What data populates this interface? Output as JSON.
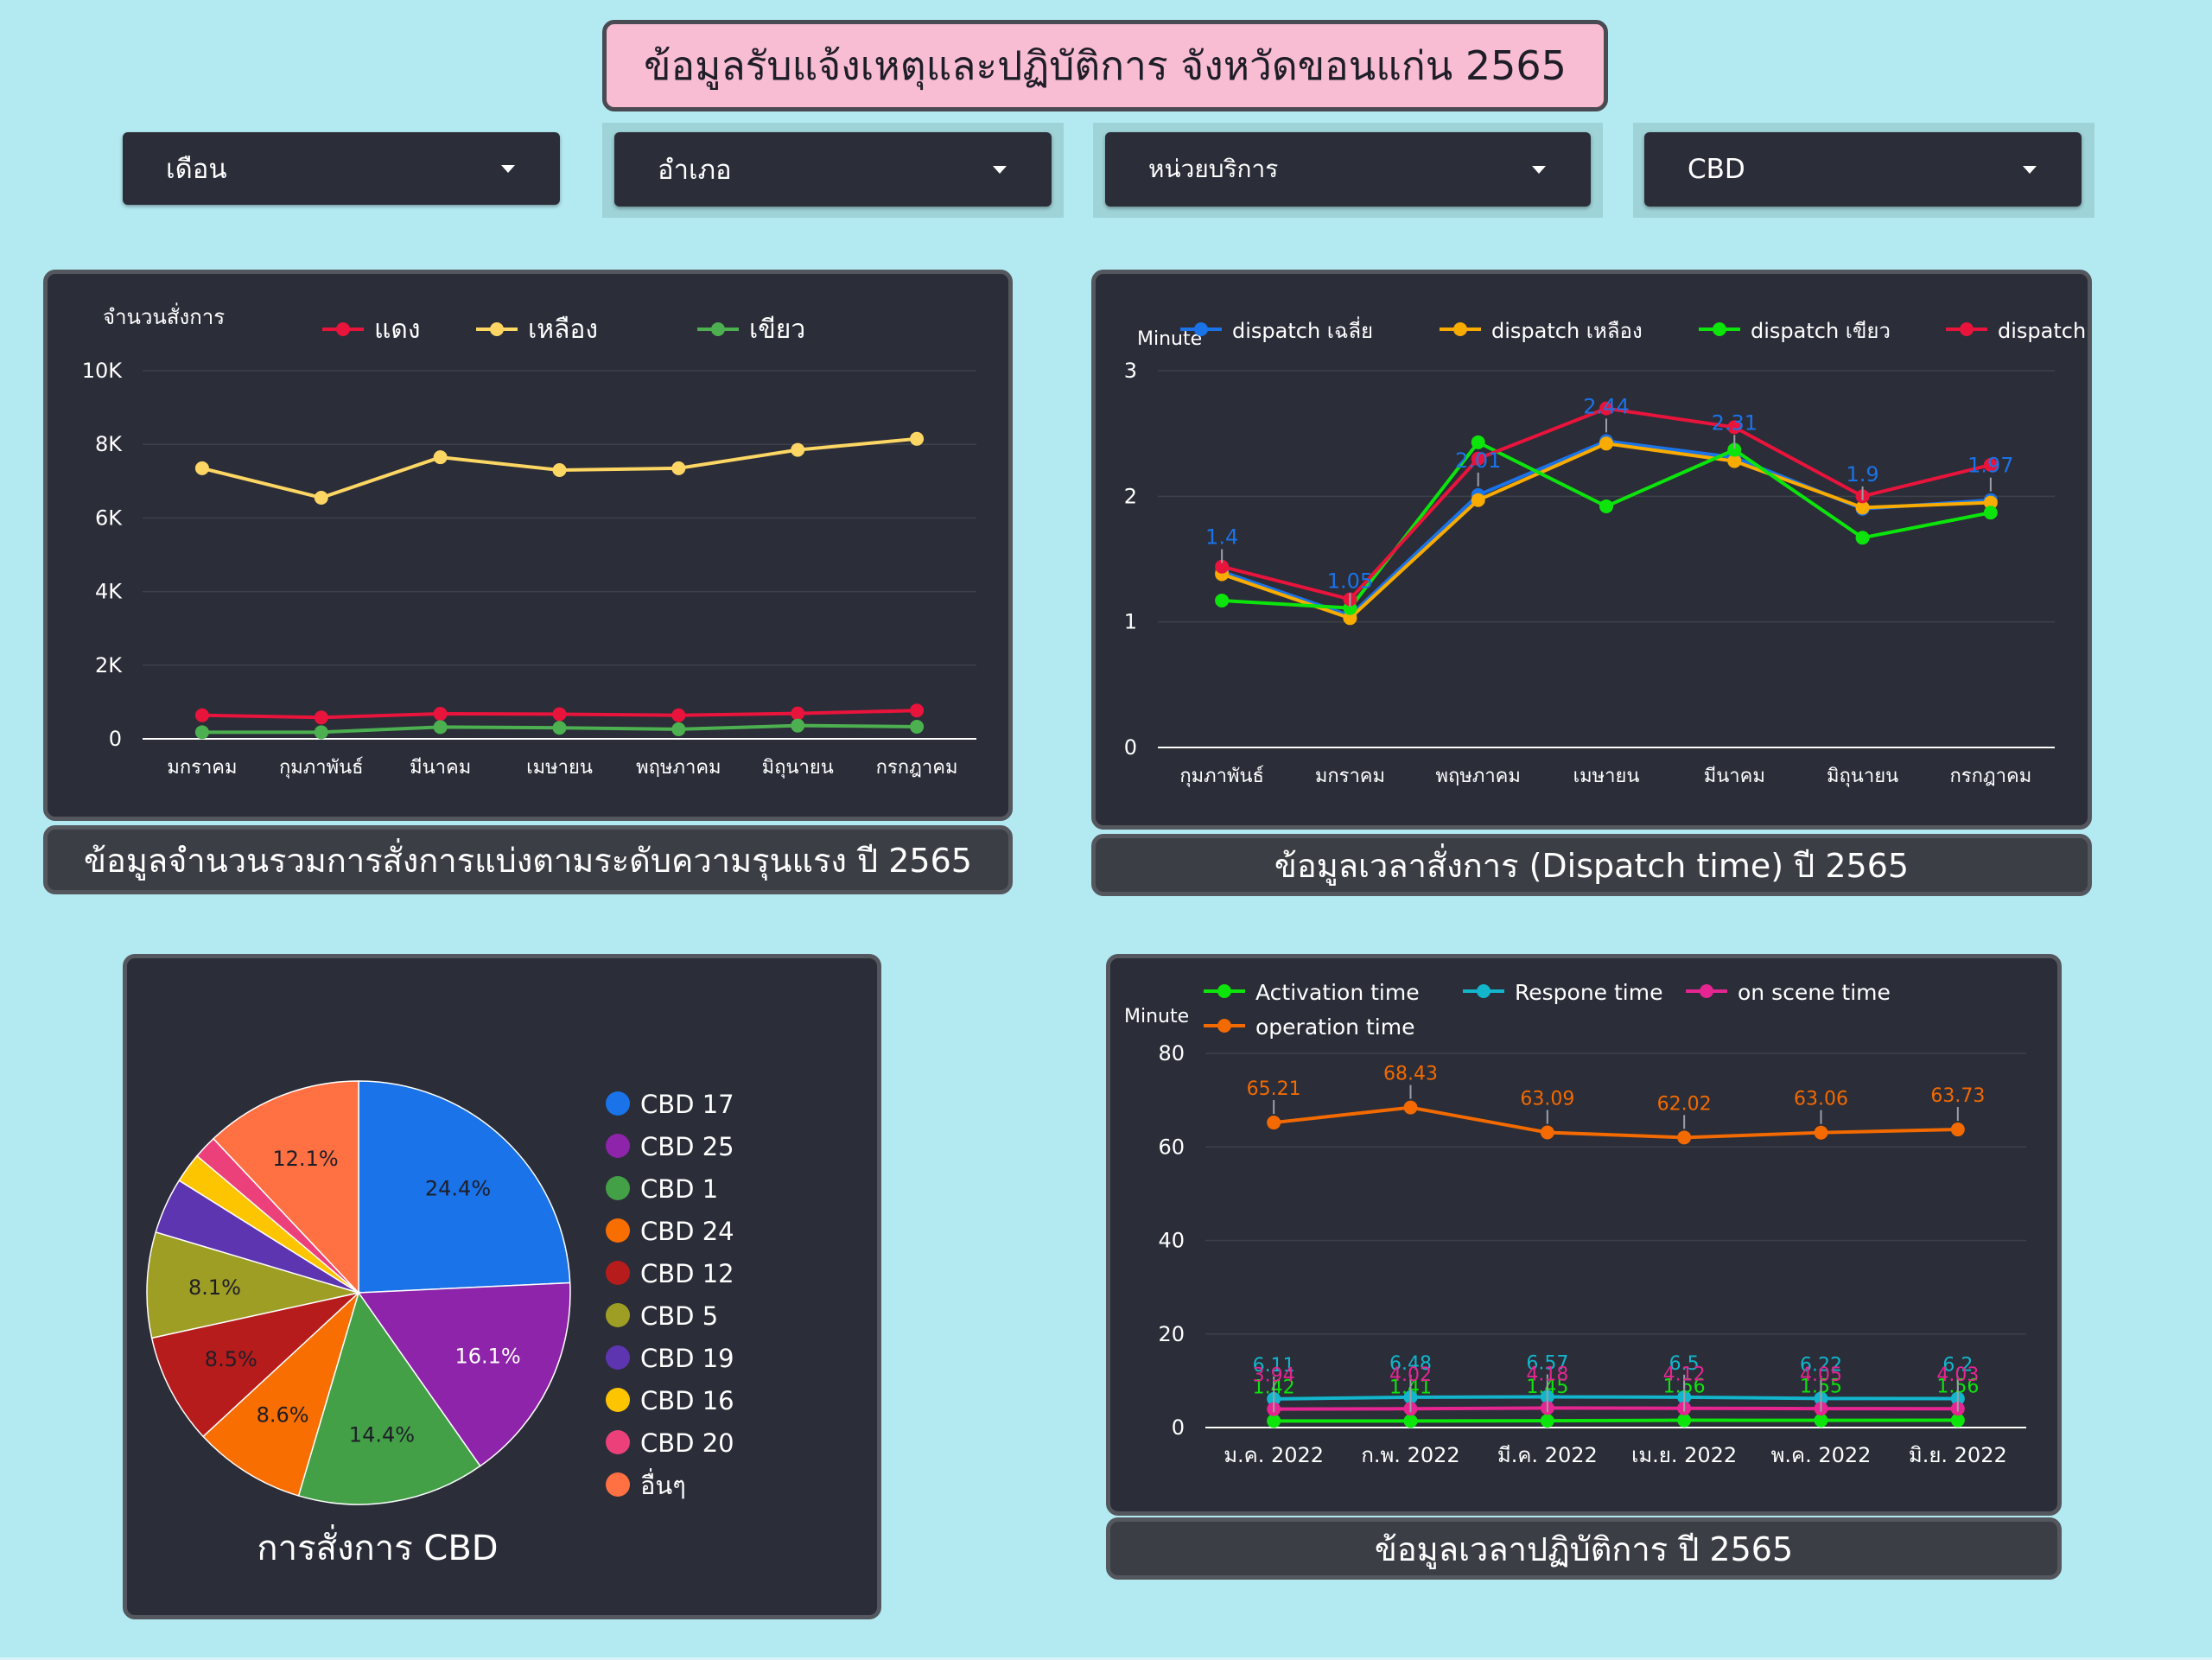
{
  "page": {
    "title": "ข้อมูลรับแจ้งเหตุและปฏิบัติการ จังหวัดขอนแก่น 2565",
    "background": "#b3eaf2"
  },
  "filters": [
    {
      "label": "เดือน",
      "icon": "caret-down-icon"
    },
    {
      "label": "อำเภอ",
      "icon": "caret-down-icon"
    },
    {
      "label": "หน่วยบริการ",
      "icon": "caret-down-icon"
    },
    {
      "label": "CBD",
      "icon": "caret-down-icon"
    }
  ],
  "captions": {
    "severity": "ข้อมูลจำนวนรวมการสั่งการแบ่งตามระดับความรุนแรง ปี 2565",
    "dispatch": "ข้อมูลเวลาสั่งการ (Dispatch time) ปี 2565",
    "cbd": "การสั่งการ CBD",
    "operation": "ข้อมูลเวลาปฏิบัติการ ปี 2565"
  },
  "chart_data": [
    {
      "type": "line",
      "ylabel": "จำนวนสั่งการ",
      "ylim": [
        0,
        10000
      ],
      "yticks": [
        "0",
        "2K",
        "4K",
        "6K",
        "8K",
        "10K"
      ],
      "categories": [
        "มกราคม",
        "กุมภาพันธ์",
        "มีนาคม",
        "เมษายน",
        "พฤษภาคม",
        "มิถุนายน",
        "กรกฎาคม"
      ],
      "legend_position": "top",
      "grid": true,
      "series": [
        {
          "name": "แดง",
          "color": "#e8143c",
          "values": [
            640,
            580,
            680,
            670,
            640,
            690,
            770
          ]
        },
        {
          "name": "เหลือง",
          "color": "#fdd663",
          "values": [
            7350,
            6550,
            7650,
            7300,
            7350,
            7850,
            8150
          ]
        },
        {
          "name": "เขียว",
          "color": "#4cb050",
          "values": [
            180,
            180,
            320,
            300,
            260,
            360,
            330
          ]
        }
      ]
    },
    {
      "type": "line",
      "ylabel": "Minute",
      "ylim": [
        0,
        3
      ],
      "yticks": [
        "0",
        "1",
        "2",
        "3"
      ],
      "categories": [
        "กุมภาพันธ์",
        "มกราคม",
        "พฤษภาคม",
        "เมษายน",
        "มีนาคม",
        "มิถุนายน",
        "กรกฎาคม"
      ],
      "legend_position": "top",
      "grid": true,
      "series": [
        {
          "name": "dispatch เฉลี่ย",
          "color": "#1a73e8",
          "values": [
            1.4,
            1.05,
            2.01,
            2.44,
            2.31,
            1.9,
            1.97
          ],
          "labels": [
            "1.4",
            "1.05",
            "2.01",
            "2.44",
            "2.31",
            "1.9",
            "1.97"
          ]
        },
        {
          "name": "dispatch เหลือง",
          "color": "#f9ab00",
          "values": [
            1.38,
            1.03,
            1.97,
            2.42,
            2.28,
            1.91,
            1.95
          ]
        },
        {
          "name": "dispatch เขียว",
          "color": "#0ce40c",
          "values": [
            1.17,
            1.11,
            2.43,
            1.92,
            2.37,
            1.67,
            1.87
          ]
        },
        {
          "name": "dispatch แดง",
          "color": "#e8143c",
          "values": [
            1.44,
            1.18,
            2.3,
            2.7,
            2.55,
            2.0,
            2.25
          ]
        }
      ]
    },
    {
      "type": "pie",
      "title": "การสั่งการ CBD",
      "slices": [
        {
          "label": "CBD 17",
          "value": 24.4,
          "color": "#1a73e8",
          "show": "24.4%"
        },
        {
          "label": "CBD 25",
          "value": 16.1,
          "color": "#8e24aa",
          "show": "16.1%"
        },
        {
          "label": "CBD 1",
          "value": 14.4,
          "color": "#43a047",
          "show": "14.4%"
        },
        {
          "label": "CBD 24",
          "value": 8.6,
          "color": "#f96e00",
          "show": "8.6%"
        },
        {
          "label": "CBD 12",
          "value": 8.5,
          "color": "#b71c1c",
          "show": "8.5%"
        },
        {
          "label": "CBD 5",
          "value": 8.1,
          "color": "#9e9d24",
          "show": "8.1%"
        },
        {
          "label": "CBD 19",
          "value": 4.3,
          "color": "#5e35b1",
          "show": ""
        },
        {
          "label": "CBD 16",
          "value": 2.3,
          "color": "#fdc400",
          "show": ""
        },
        {
          "label": "CBD 20",
          "value": 1.8,
          "color": "#ec407a",
          "show": ""
        },
        {
          "label": "อื่นๆ",
          "value": 12.1,
          "color": "#ff7043",
          "show": "12.1%"
        }
      ]
    },
    {
      "type": "line",
      "ylabel": "Minute",
      "ylim": [
        0,
        80
      ],
      "yticks": [
        "0",
        "20",
        "40",
        "60",
        "80"
      ],
      "categories": [
        "ม.ค. 2022",
        "ก.พ. 2022",
        "มี.ค. 2022",
        "เม.ย. 2022",
        "พ.ค. 2022",
        "มิ.ย. 2022"
      ],
      "legend_position": "top",
      "grid": true,
      "series": [
        {
          "name": "Activation time",
          "color": "#0ce40c",
          "values": [
            1.42,
            1.41,
            1.45,
            1.56,
            1.55,
            1.56
          ],
          "labels": [
            "1.42",
            "1.41",
            "1.45",
            "1.56",
            "1.55",
            "1.56"
          ]
        },
        {
          "name": "Respone time",
          "color": "#12b5cb",
          "values": [
            6.11,
            6.48,
            6.57,
            6.5,
            6.22,
            6.2
          ],
          "labels": [
            "6.11",
            "6.48",
            "6.57",
            "6.5",
            "6.22",
            "6.2"
          ]
        },
        {
          "name": "on scene time",
          "color": "#e52592",
          "values": [
            3.94,
            4.02,
            4.18,
            4.12,
            4.05,
            4.03
          ],
          "labels": [
            "3.94",
            "4.02",
            "4.18",
            "4.12",
            "4.05",
            "4.03"
          ]
        },
        {
          "name": "operation time",
          "color": "#f26a00",
          "values": [
            65.21,
            68.43,
            63.09,
            62.02,
            63.06,
            63.73
          ],
          "labels": [
            "65.21",
            "68.43",
            "63.09",
            "62.02",
            "63.06",
            "63.73"
          ]
        }
      ]
    }
  ]
}
